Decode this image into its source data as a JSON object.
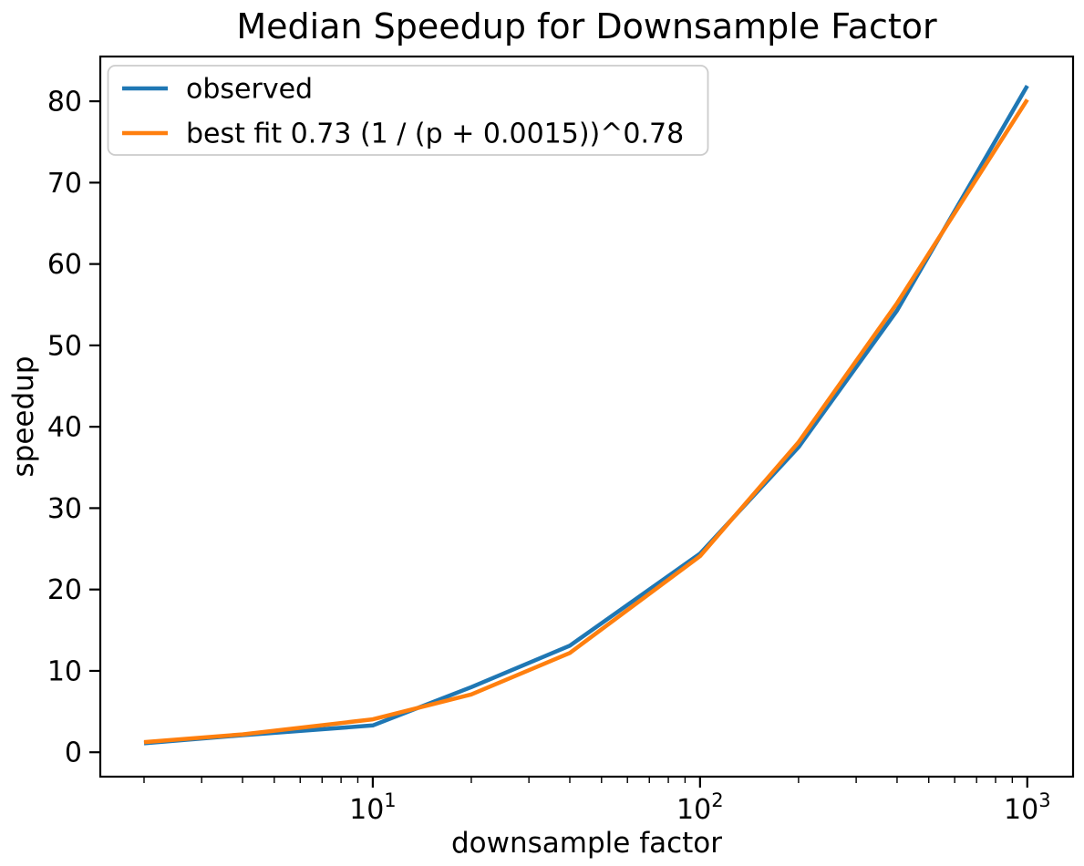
{
  "figure": {
    "background": "#ffffff"
  },
  "chart_data": {
    "type": "line",
    "title": "Median Speedup for Downsample Factor",
    "xlabel": "downsample factor",
    "ylabel": "speedup",
    "x_scale": "log",
    "y_scale": "linear",
    "xlim": [
      1.47,
      1380
    ],
    "ylim": [
      -3,
      85.5
    ],
    "x_major_ticks": [
      10,
      100,
      1000
    ],
    "y_ticks": [
      0,
      10,
      20,
      30,
      40,
      50,
      60,
      70,
      80
    ],
    "grid": false,
    "legend_position": "upper left",
    "x": [
      2,
      4,
      10,
      20,
      40,
      100,
      200,
      400,
      1000
    ],
    "series": [
      {
        "name": "observed",
        "color": "#1f77b4",
        "values": [
          1.1,
          2.1,
          3.3,
          8.0,
          13.1,
          24.4,
          37.5,
          54.3,
          81.9
        ]
      },
      {
        "name": "best fit 0.73 (1 / (p + 0.0015))^0.78",
        "color": "#ff7f0e",
        "values": [
          1.25,
          2.2,
          4.05,
          7.1,
          12.2,
          24.1,
          38.1,
          55.2,
          80.2
        ]
      }
    ],
    "legend_entries": [
      "observed",
      "best fit 0.73 (1 / (p + 0.0015))^0.78"
    ]
  },
  "style": {
    "spine_color": "#000000",
    "tick_color": "#000000",
    "legend_border_color": "#cccccc",
    "legend_fill": "#ffffff",
    "line_width": 4.5
  }
}
